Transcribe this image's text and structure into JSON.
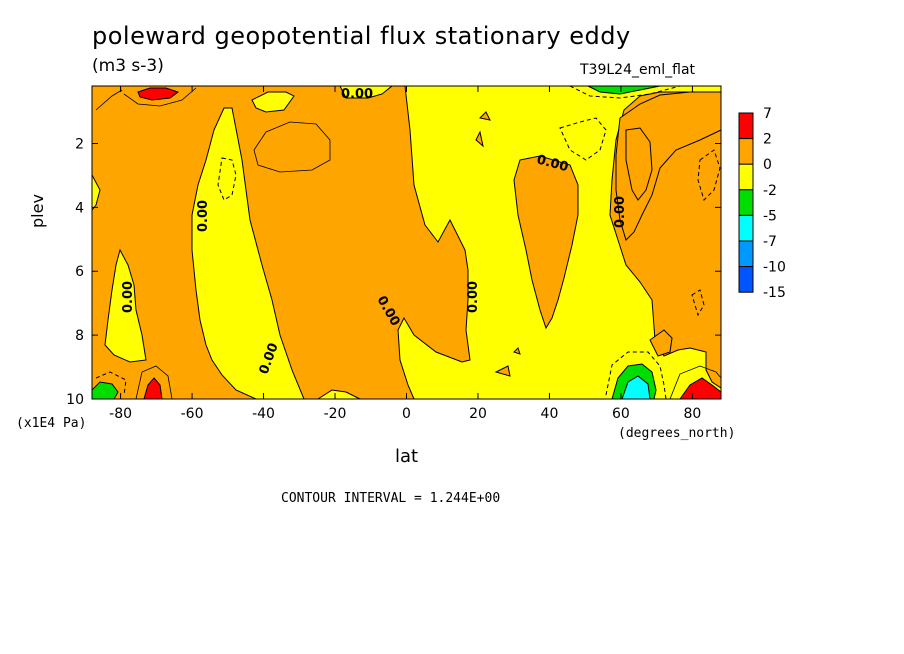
{
  "title": "poleward geopotential flux stationary eddy",
  "units": "(m3 s-3)",
  "run_name": "T39L24_eml_flat",
  "contour_interval": "CONTOUR INTERVAL = 1.244E+00",
  "chart_data": {
    "type": "heatmap",
    "title": "poleward geopotential flux stationary eddy",
    "xlabel": "lat",
    "x_units": "(degrees_north)",
    "ylabel": "plev",
    "y_multiplier": "(x1E4 Pa)",
    "xlim": [
      -88,
      88
    ],
    "ylim": [
      10,
      0.2
    ],
    "x_ticks": [
      "-80",
      "-60",
      "-40",
      "-20",
      "0",
      "20",
      "40",
      "60",
      "80"
    ],
    "x_tick_values": [
      -80,
      -60,
      -40,
      -20,
      0,
      20,
      40,
      60,
      80
    ],
    "y_ticks": [
      "2",
      "4",
      "6",
      "8",
      "10"
    ],
    "y_tick_values": [
      2,
      4,
      6,
      8,
      10
    ],
    "contour_labels": [
      "0.00",
      "0.00",
      "0.00",
      "0.00",
      "0.00",
      "0.00",
      "0.00",
      "0.00",
      "0.00"
    ],
    "colorbar": {
      "labels": [
        "7",
        "2",
        "0",
        "-2",
        "-5",
        "-7",
        "-10",
        "-15"
      ],
      "colors": [
        "#ff0000",
        "#ffa500",
        "#ffff00",
        "#00dd00",
        "#00ffff",
        "#0099ff",
        "#0055ff"
      ]
    },
    "regions": [
      {
        "sign": "positive",
        "level": "0 to 2",
        "lat_range": [
          -88,
          -45
        ],
        "plev_range": [
          0.5,
          10
        ]
      },
      {
        "sign": "negative",
        "level": "-2 to 0",
        "lat_range": [
          -55,
          -38
        ],
        "plev_range": [
          1,
          9
        ]
      },
      {
        "sign": "positive",
        "level": "0 to 2",
        "lat_range": [
          -32,
          8
        ],
        "plev_range": [
          0.5,
          10
        ]
      },
      {
        "sign": "negative",
        "level": "-2 to 0",
        "lat_range": [
          8,
          88
        ],
        "plev_range": [
          0.2,
          10
        ]
      },
      {
        "sign": "positive",
        "level": "0 to 2",
        "lat_range": [
          30,
          50
        ],
        "plev_range": [
          3,
          8
        ]
      },
      {
        "sign": "positive",
        "level": "0 to 2",
        "lat_range": [
          58,
          88
        ],
        "plev_range": [
          0.2,
          5
        ]
      },
      {
        "sign": "positive",
        "level": "2 to 7",
        "lat_range": [
          -74,
          -65
        ],
        "plev_range": [
          0.2,
          0.5
        ]
      },
      {
        "sign": "positive",
        "level": "2 to 7",
        "lat_range": [
          -74,
          -70
        ],
        "plev_range": [
          9.5,
          10
        ]
      },
      {
        "sign": "positive",
        "level": "2 to 7",
        "lat_range": [
          76,
          88
        ],
        "plev_range": [
          9.4,
          10
        ]
      },
      {
        "sign": "negative",
        "level": "-5 to -2",
        "lat_range": [
          -88,
          -82
        ],
        "plev_range": [
          9.5,
          10
        ]
      },
      {
        "sign": "negative",
        "level": "-5 to -2",
        "lat_range": [
          58,
          70
        ],
        "plev_range": [
          9,
          10
        ]
      },
      {
        "sign": "negative",
        "level": "-7 to -5",
        "lat_range": [
          60,
          66
        ],
        "plev_range": [
          9.6,
          10
        ]
      },
      {
        "sign": "negative",
        "level": "-5 to -2",
        "lat_range": [
          52,
          75
        ],
        "plev_range": [
          0.2,
          0.3
        ]
      }
    ]
  }
}
